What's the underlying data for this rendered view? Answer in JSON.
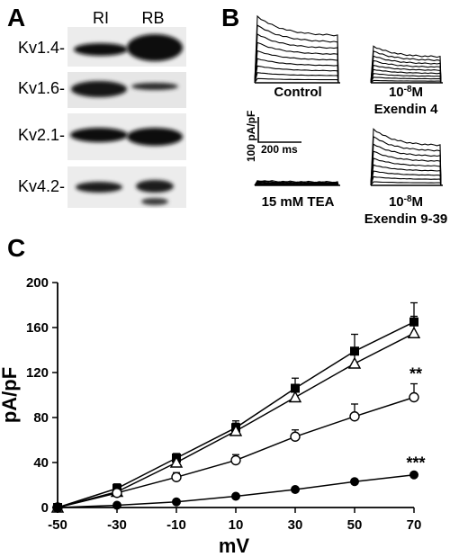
{
  "panels": {
    "a": {
      "letter": "A",
      "lane_labels": [
        "RI",
        "RB"
      ],
      "blots": [
        {
          "label": "Kv1.4-"
        },
        {
          "label": "Kv1.6-"
        },
        {
          "label": "Kv2.1-"
        },
        {
          "label": "Kv4.2-"
        }
      ]
    },
    "b": {
      "letter": "B",
      "traces": [
        {
          "label": "Control",
          "scale": 1.0
        },
        {
          "label_line1": "10",
          "label_sup": "-8",
          "label_unit": "M",
          "label_line2": "Exendin 4",
          "scale": 0.55
        },
        {
          "label": "15 mM TEA",
          "scale": 0.08
        },
        {
          "label_line1": "10",
          "label_sup": "-8",
          "label_unit": "M",
          "label_line2": "Exendin 9-39",
          "scale": 0.95
        }
      ],
      "scalebar": {
        "y_label": "100 pA/pF",
        "x_label": "200 ms"
      }
    },
    "c": {
      "letter": "C"
    }
  },
  "chart_data": {
    "type": "line",
    "xlabel": "mV",
    "ylabel": "pA/pF",
    "x": [
      -50,
      -30,
      -10,
      10,
      30,
      50,
      70
    ],
    "xlim": [
      -50,
      70
    ],
    "ylim": [
      0,
      200
    ],
    "x_ticks": [
      "-50",
      "-30",
      "-10",
      "10",
      "30",
      "50",
      "70"
    ],
    "y_ticks": [
      "0",
      "40",
      "80",
      "120",
      "160",
      "200"
    ],
    "series": [
      {
        "marker": "filled-square",
        "values": [
          0,
          17,
          44,
          71,
          106,
          139,
          165
        ],
        "errors": [
          0,
          4,
          4,
          6,
          9,
          15,
          17
        ]
      },
      {
        "marker": "open-triangle",
        "values": [
          0,
          14,
          40,
          68,
          98,
          128,
          155
        ],
        "errors": [
          0,
          4,
          4,
          7,
          9,
          14,
          15
        ]
      },
      {
        "marker": "open-circle",
        "values": [
          0,
          13,
          27,
          42,
          63,
          81,
          98
        ],
        "errors": [
          0,
          3,
          4,
          5,
          6,
          11,
          12
        ]
      },
      {
        "marker": "filled-circle",
        "values": [
          0,
          2,
          5,
          10,
          16,
          23,
          29
        ],
        "errors": [
          0,
          1,
          1,
          1,
          1,
          2,
          2
        ]
      }
    ],
    "annotations": [
      {
        "text": "**",
        "x": 70,
        "y": 114
      },
      {
        "text": "***",
        "x": 70,
        "y": 35
      }
    ],
    "grid": false
  }
}
